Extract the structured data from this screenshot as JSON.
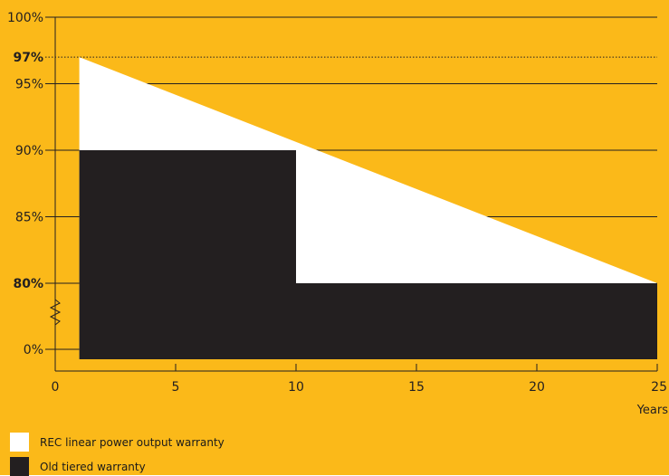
{
  "colors": {
    "background": "#fbb919",
    "linear": "#ffffff",
    "tiered": "#231f20",
    "axis": "#231f20"
  },
  "chart_data": {
    "type": "area",
    "xlabel": "Years",
    "ylabel": "",
    "xlim": [
      0,
      25
    ],
    "x_ticks": [
      0,
      5,
      10,
      15,
      20,
      25
    ],
    "x_tick_labels": [
      "0",
      "5",
      "10",
      "15",
      "20",
      "25"
    ],
    "y_ticks": [
      {
        "value": 100,
        "label": "100%",
        "bold": false
      },
      {
        "value": 97,
        "label": "97%",
        "bold": true
      },
      {
        "value": 95,
        "label": "95%",
        "bold": false
      },
      {
        "value": 90,
        "label": "90%",
        "bold": false
      },
      {
        "value": 85,
        "label": "85%",
        "bold": false
      },
      {
        "value": 80,
        "label": "80%",
        "bold": true
      },
      {
        "value": 0,
        "label": "0%",
        "bold": false
      }
    ],
    "axis_break": "between 80% and 0%",
    "reference_line": {
      "value": 97,
      "style": "dotted"
    },
    "grid": "horizontal",
    "series": [
      {
        "name": "REC linear power output warranty",
        "color": "#ffffff",
        "x": [
          1,
          25
        ],
        "y": [
          97,
          80
        ]
      },
      {
        "name": "Old tiered warranty",
        "color": "#231f20",
        "x": [
          1,
          10,
          10,
          25
        ],
        "y": [
          90,
          90,
          80,
          80
        ]
      }
    ]
  },
  "legend": {
    "items": [
      {
        "label": "REC linear power output warranty",
        "color": "#ffffff"
      },
      {
        "label": "Old tiered warranty",
        "color": "#231f20"
      }
    ]
  }
}
